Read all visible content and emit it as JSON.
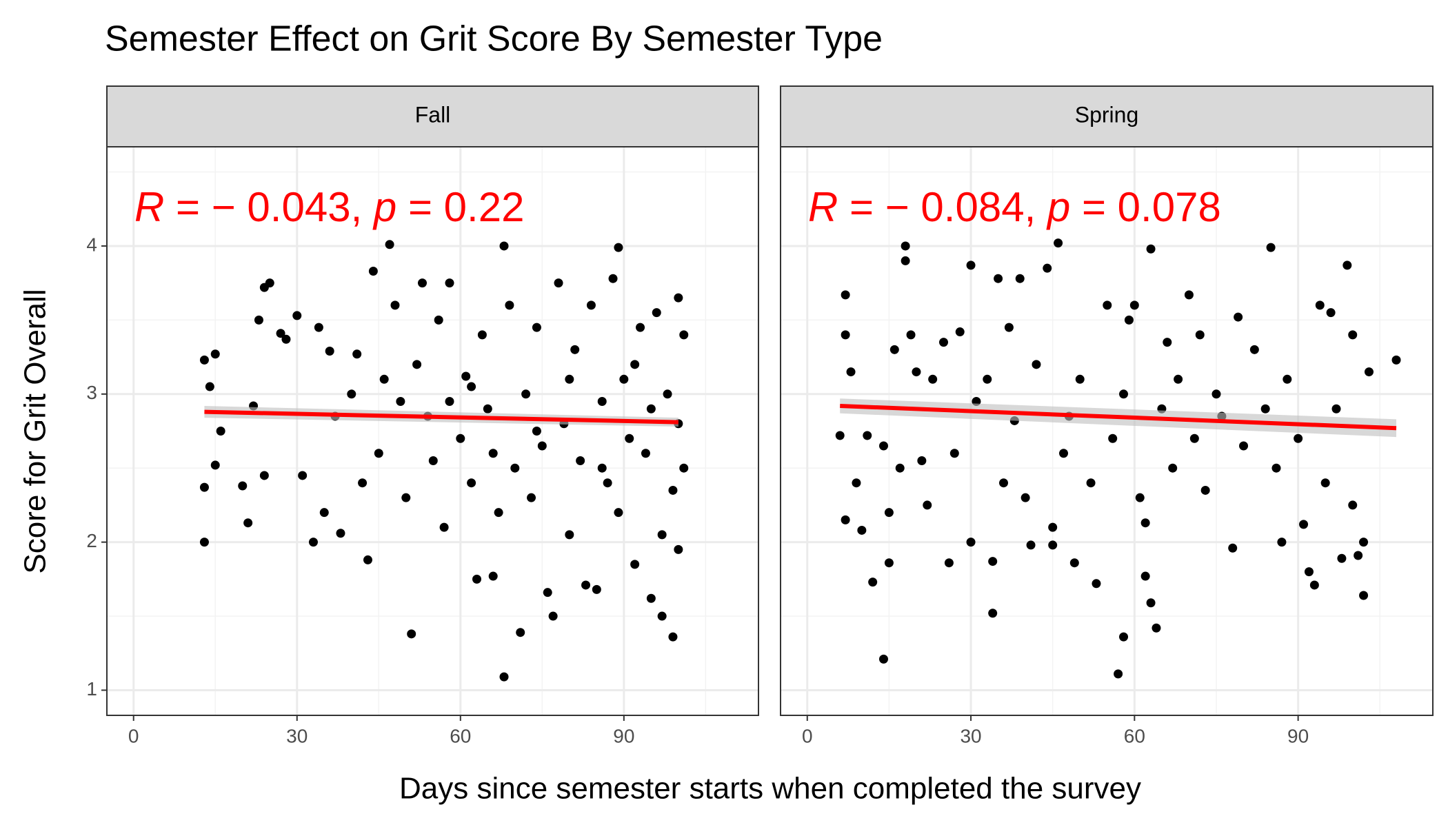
{
  "title": "Semester Effect on Grit Score By Semester Type",
  "xlabel": "Days since semester starts when completed the survey",
  "ylabel": "Score for Grit Overall",
  "chart_data": [
    {
      "type": "scatter",
      "facet": "Fall",
      "annotation": [
        "R",
        " = − 0.043, ",
        "p",
        " = 0.22"
      ],
      "color": "#000000",
      "x": [
        13,
        13,
        13,
        14,
        15,
        15,
        16,
        20,
        21,
        22,
        23,
        24,
        24,
        25,
        27,
        28,
        30,
        31,
        33,
        34,
        35,
        36,
        37,
        38,
        40,
        41,
        42,
        43,
        44,
        45,
        46,
        47,
        48,
        49,
        50,
        51,
        52,
        53,
        54,
        55,
        56,
        57,
        58,
        60,
        61,
        62,
        63,
        64,
        65,
        66,
        67,
        68,
        68,
        69,
        70,
        71,
        72,
        73,
        74,
        75,
        76,
        77,
        78,
        79,
        80,
        81,
        82,
        83,
        84,
        85,
        86,
        87,
        88,
        89,
        89,
        90,
        91,
        92,
        93,
        94,
        95,
        96,
        97,
        97,
        98,
        99,
        99,
        100,
        100,
        100,
        101,
        101,
        58,
        62,
        66,
        74,
        80,
        86,
        92,
        95
      ],
      "values": [
        3.23,
        2.0,
        2.37,
        3.05,
        3.27,
        2.52,
        2.75,
        2.38,
        2.13,
        2.92,
        3.5,
        2.45,
        3.72,
        3.75,
        3.41,
        3.37,
        3.53,
        2.45,
        2.0,
        3.45,
        2.2,
        3.29,
        2.85,
        2.06,
        3.0,
        3.27,
        2.4,
        1.88,
        3.83,
        2.6,
        3.1,
        4.01,
        3.6,
        2.95,
        2.3,
        1.38,
        3.2,
        3.75,
        2.85,
        2.55,
        3.5,
        2.1,
        3.75,
        2.7,
        3.12,
        2.4,
        1.75,
        3.4,
        2.9,
        1.77,
        2.2,
        4.0,
        1.09,
        3.6,
        2.5,
        1.39,
        3.0,
        2.3,
        3.45,
        2.65,
        1.66,
        1.5,
        3.75,
        2.8,
        2.05,
        3.3,
        2.55,
        1.71,
        3.6,
        1.68,
        2.95,
        2.4,
        3.78,
        3.99,
        2.2,
        3.1,
        2.7,
        1.85,
        3.45,
        2.6,
        1.62,
        3.55,
        1.5,
        2.05,
        3.0,
        2.35,
        1.36,
        3.65,
        2.8,
        1.95,
        3.4,
        2.5,
        2.95,
        3.05,
        2.6,
        2.75,
        3.1,
        2.5,
        3.2,
        2.9
      ],
      "fit": {
        "x": [
          13,
          100
        ],
        "values": [
          2.88,
          2.81
        ],
        "lower": [
          2.84,
          2.78
        ],
        "upper": [
          2.92,
          2.84
        ],
        "color": "#ff0000",
        "band_color": "#bebebe"
      },
      "xlim": [
        -4.9,
        114.7
      ],
      "ylim": [
        0.83,
        4.67
      ],
      "xticks": [
        0,
        30,
        60,
        90
      ],
      "yticks": [
        1,
        2,
        3,
        4
      ],
      "xminor": [
        15,
        45,
        75,
        105
      ],
      "yminor": [
        1.5,
        2.5,
        3.5,
        4.5
      ],
      "grid": true
    },
    {
      "type": "scatter",
      "facet": "Spring",
      "annotation": [
        "R",
        " = − 0.084, ",
        "p",
        " = 0.078"
      ],
      "color": "#000000",
      "x": [
        6,
        7,
        7,
        7,
        8,
        9,
        10,
        11,
        12,
        14,
        14,
        15,
        15,
        16,
        17,
        18,
        18,
        19,
        20,
        21,
        22,
        23,
        25,
        26,
        27,
        28,
        30,
        30,
        31,
        33,
        34,
        34,
        35,
        36,
        37,
        38,
        39,
        40,
        41,
        42,
        44,
        45,
        45,
        46,
        47,
        48,
        49,
        50,
        52,
        53,
        55,
        56,
        57,
        58,
        58,
        59,
        60,
        61,
        62,
        62,
        63,
        63,
        64,
        65,
        66,
        67,
        68,
        70,
        71,
        72,
        73,
        75,
        76,
        78,
        79,
        80,
        82,
        84,
        85,
        86,
        87,
        88,
        90,
        91,
        92,
        93,
        94,
        95,
        96,
        97,
        98,
        99,
        100,
        100,
        101,
        102,
        102,
        103,
        108
      ],
      "values": [
        2.72,
        3.67,
        3.4,
        2.15,
        3.15,
        2.4,
        2.08,
        2.72,
        1.73,
        2.65,
        1.21,
        2.2,
        1.86,
        3.3,
        2.5,
        4.0,
        3.9,
        3.4,
        3.15,
        2.55,
        2.25,
        3.1,
        3.35,
        1.86,
        2.6,
        3.42,
        3.87,
        2.0,
        2.95,
        3.1,
        1.52,
        1.87,
        3.78,
        2.4,
        3.45,
        2.82,
        3.78,
        2.3,
        1.98,
        3.2,
        3.85,
        2.1,
        1.98,
        4.02,
        2.6,
        2.85,
        1.86,
        3.1,
        2.4,
        1.72,
        3.6,
        2.7,
        1.11,
        1.36,
        3.0,
        3.5,
        3.6,
        2.3,
        2.13,
        1.77,
        3.98,
        1.59,
        1.42,
        2.9,
        3.35,
        2.5,
        3.1,
        3.67,
        2.7,
        3.4,
        2.35,
        3.0,
        2.85,
        1.96,
        3.52,
        2.65,
        3.3,
        2.9,
        3.99,
        2.5,
        2.0,
        3.1,
        2.7,
        2.12,
        1.8,
        1.71,
        3.6,
        2.4,
        3.55,
        2.9,
        1.89,
        3.87,
        3.4,
        2.25,
        1.91,
        1.64,
        2.0,
        3.15,
        3.23
      ],
      "fit": {
        "x": [
          6,
          108
        ],
        "values": [
          2.92,
          2.77
        ],
        "lower": [
          2.87,
          2.71
        ],
        "upper": [
          2.97,
          2.83
        ],
        "color": "#ff0000",
        "band_color": "#bebebe"
      },
      "xlim": [
        -4.9,
        114.7
      ],
      "ylim": [
        0.83,
        4.67
      ],
      "xticks": [
        0,
        30,
        60,
        90
      ],
      "yticks": [
        1,
        2,
        3,
        4
      ],
      "xminor": [
        15,
        45,
        75,
        105
      ],
      "yminor": [
        1.5,
        2.5,
        3.5,
        4.5
      ],
      "grid": true
    }
  ]
}
